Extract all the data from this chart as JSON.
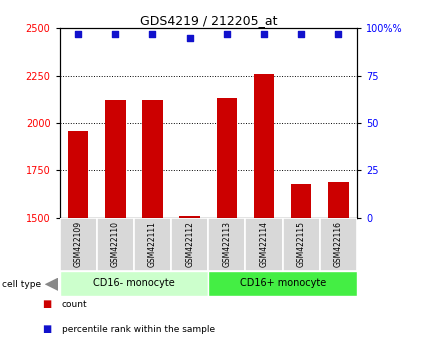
{
  "title": "GDS4219 / 212205_at",
  "samples": [
    "GSM422109",
    "GSM422110",
    "GSM422111",
    "GSM422112",
    "GSM422113",
    "GSM422114",
    "GSM422115",
    "GSM422116"
  ],
  "counts": [
    1960,
    2120,
    2120,
    1510,
    2130,
    2260,
    1680,
    1690
  ],
  "percentile_ranks": [
    97,
    97,
    97,
    95,
    97,
    97,
    97,
    97
  ],
  "ylim_left": [
    1500,
    2500
  ],
  "yticks_left": [
    1500,
    1750,
    2000,
    2250,
    2500
  ],
  "ylim_right": [
    0,
    100
  ],
  "yticks_right": [
    0,
    25,
    50,
    75,
    100
  ],
  "bar_color": "#cc0000",
  "scatter_color": "#1111cc",
  "group1_label": "CD16- monocyte",
  "group2_label": "CD16+ monocyte",
  "group1_indices": [
    0,
    1,
    2,
    3
  ],
  "group2_indices": [
    4,
    5,
    6,
    7
  ],
  "group1_bg": "#ccffcc",
  "group2_bg": "#44ee44",
  "sample_bg": "#d8d8d8",
  "legend_count_label": "count",
  "legend_pct_label": "percentile rank within the sample",
  "cell_type_label": "cell type"
}
